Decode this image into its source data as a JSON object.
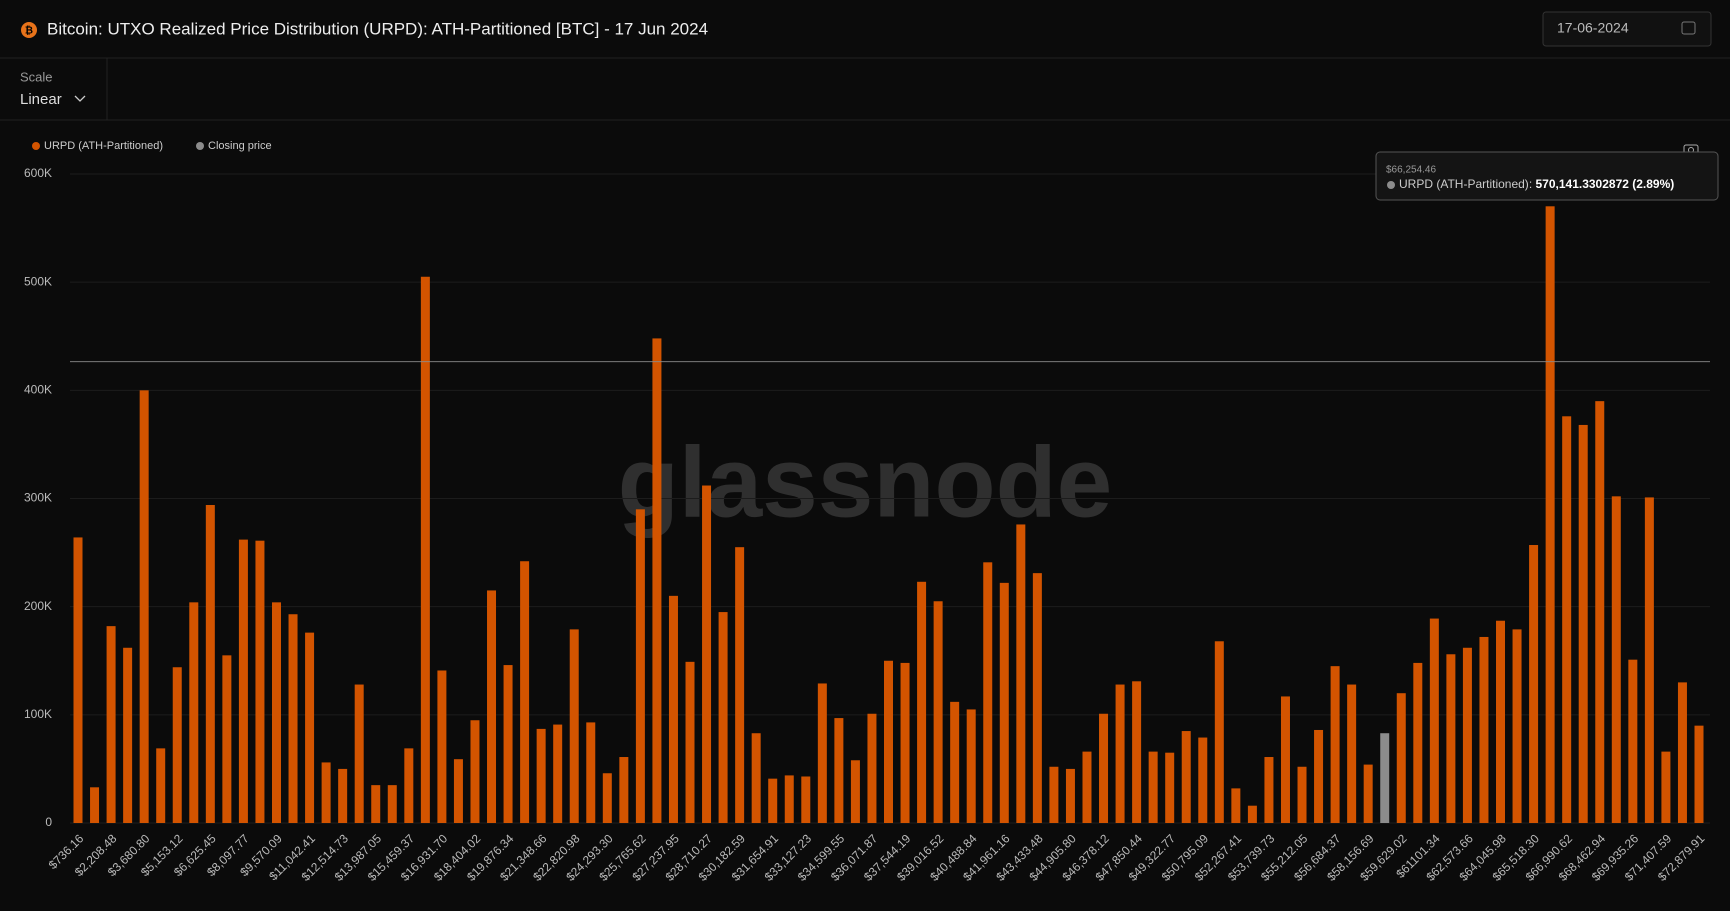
{
  "header": {
    "title": "Bitcoin: UTXO Realized Price Distribution (URPD): ATH-Partitioned [BTC] - 17 Jun 2024",
    "date": "17-06-2024",
    "scale_label": "Scale",
    "scale_value": "Linear"
  },
  "watermark": "glassnode",
  "chart_data": {
    "type": "bar",
    "categories": [
      "$736.16",
      null,
      "$2,208.48",
      null,
      "$3,680.80",
      null,
      "$5,153.12",
      null,
      "$6,625.45",
      null,
      "$8,097.77",
      null,
      "$9,570.09",
      null,
      "$11,042.41",
      null,
      "$12,514.73",
      null,
      "$13,987.05",
      null,
      "$15,459.37",
      null,
      "$16,931.70",
      null,
      "$18,404.02",
      null,
      "$19,876.34",
      null,
      "$21,348.66",
      null,
      "$22,820.98",
      null,
      "$24,293.30",
      null,
      "$25,765.62",
      null,
      "$27,237.95",
      null,
      "$28,710.27",
      null,
      "$30,182.59",
      null,
      "$31,654.91",
      null,
      "$33,127.23",
      null,
      "$34,599.55",
      null,
      "$36,071.87",
      null,
      "$37,544.19",
      null,
      "$39,016.52",
      null,
      "$40,488.84",
      null,
      "$41,961.16",
      null,
      "$43,433.48",
      null,
      "$44,905.80",
      null,
      "$46,378.12",
      null,
      "$47,850.44",
      null,
      "$49,322.77",
      null,
      "$50,795.09",
      null,
      "$52,267.41",
      null,
      "$53,739.73",
      null,
      "$55,212.05",
      null,
      "$56,684.37",
      null,
      "$58,156.69",
      null,
      "$59,629.02",
      null,
      "$61101.34",
      null,
      "$62,573.66",
      null,
      "$64,045.98",
      null,
      "$65,518.30",
      null,
      "$66,990.62",
      null,
      "$68,462.94",
      null,
      "$69,935.26",
      null,
      "$71,407.59",
      null,
      "$72,879.91"
    ],
    "series": [
      {
        "name": "URPD (ATH-Partitioned)",
        "color": "#d35400",
        "values": [
          264000,
          33000,
          182000,
          162000,
          400000,
          69000,
          144000,
          204000,
          294000,
          155000,
          262000,
          261000,
          204000,
          193000,
          176000,
          56000,
          50000,
          128000,
          35000,
          35000,
          69000,
          505000,
          141000,
          59000,
          95000,
          215000,
          146000,
          242000,
          87000,
          91000,
          179000,
          93000,
          46000,
          61000,
          290000,
          448000,
          210000,
          149000,
          312000,
          195000,
          255000,
          83000,
          41000,
          44000,
          43000,
          129000,
          97000,
          58000,
          101000,
          150000,
          148000,
          223000,
          205000,
          112000,
          105000,
          241000,
          222000,
          276000,
          231000,
          52000,
          50000,
          66000,
          101000,
          128000,
          131000,
          66000,
          65000,
          85000,
          79000,
          168000,
          32000,
          16000,
          61000,
          117000,
          52000,
          86000,
          145000,
          128000,
          54000,
          83000,
          120000,
          148000,
          189000,
          156000,
          162000,
          172000,
          187000,
          179000,
          257000,
          570141.3302872,
          376000,
          368000,
          390000,
          302000,
          151000,
          301000,
          66000,
          130000,
          90000
        ],
        "colors": [
          "#d35400",
          "#d35400",
          "#d35400",
          "#d35400",
          "#d35400",
          "#d35400",
          "#d35400",
          "#d35400",
          "#d35400",
          "#d35400",
          "#d35400",
          "#d35400",
          "#d35400",
          "#d35400",
          "#d35400",
          "#d35400",
          "#d35400",
          "#d35400",
          "#d35400",
          "#d35400",
          "#d35400",
          "#d35400",
          "#d35400",
          "#d35400",
          "#d35400",
          "#d35400",
          "#d35400",
          "#d35400",
          "#d35400",
          "#d35400",
          "#d35400",
          "#d35400",
          "#d35400",
          "#d35400",
          "#d35400",
          "#d35400",
          "#d35400",
          "#d35400",
          "#d35400",
          "#d35400",
          "#d35400",
          "#d35400",
          "#d35400",
          "#d35400",
          "#d35400",
          "#d35400",
          "#d35400",
          "#d35400",
          "#d35400",
          "#d35400",
          "#d35400",
          "#d35400",
          "#d35400",
          "#d35400",
          "#d35400",
          "#d35400",
          "#d35400",
          "#d35400",
          "#d35400",
          "#d35400",
          "#d35400",
          "#d35400",
          "#d35400",
          "#d35400",
          "#d35400",
          "#d35400",
          "#d35400",
          "#d35400",
          "#d35400",
          "#d35400",
          "#d35400",
          "#d35400",
          "#d35400",
          "#d35400",
          "#d35400",
          "#d35400",
          "#d35400",
          "#d35400",
          "#d35400",
          "#8c8c8c",
          "#d35400",
          "#d35400",
          "#d35400",
          "#d35400",
          "#d35400",
          "#d35400",
          "#d35400",
          "#d35400",
          "#d35400",
          "#d35400",
          "#d35400",
          "#d35400",
          "#d35400",
          "#d35400",
          "#d35400",
          "#d35400",
          "#d35400",
          "#d35400",
          "#d35400"
        ]
      }
    ],
    "closing_price": {
      "name": "Closing price",
      "color": "#8c8c8c",
      "value": 426500
    },
    "tooltip": {
      "title": "$66,254.46",
      "value_label": "570,141.3302872 (2.89%)"
    },
    "ylim": [
      0,
      600000
    ],
    "yticks": [
      {
        "value": 0,
        "label": "0"
      },
      {
        "value": 100000,
        "label": "100K"
      },
      {
        "value": 200000,
        "label": "200K"
      },
      {
        "value": 300000,
        "label": "300K"
      },
      {
        "value": 400000,
        "label": "400K"
      },
      {
        "value": 500000,
        "label": "500K"
      },
      {
        "value": 600000,
        "label": "600K"
      }
    ],
    "grid": true
  }
}
